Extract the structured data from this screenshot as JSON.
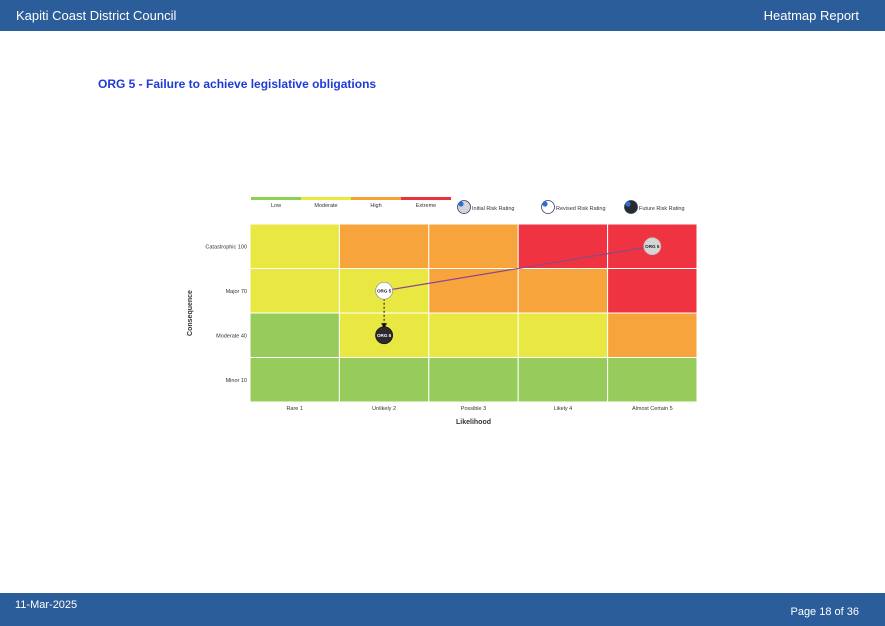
{
  "header": {
    "organisation": "Kapiti Coast District Council",
    "report_title": "Heatmap Report"
  },
  "page_title": "ORG 5 - Failure to achieve legislative obligations",
  "legend": {
    "levels": [
      {
        "label": "Low",
        "color": "#8ccf55"
      },
      {
        "label": "Moderate",
        "color": "#eaea3a"
      },
      {
        "label": "High",
        "color": "#f5a033"
      },
      {
        "label": "Extreme",
        "color": "#e8333a"
      }
    ],
    "markers": [
      {
        "label": "Initial Risk Rating",
        "fill": "#d5d5d5"
      },
      {
        "label": "Revised Risk Rating",
        "fill": "#ffffff"
      },
      {
        "label": "Future Risk Rating",
        "fill": "#2b2b2b"
      }
    ]
  },
  "chart_data": {
    "type": "heatmap",
    "xlabel": "Likelihood",
    "ylabel": "Consequence",
    "x_categories": [
      "Rare 1",
      "Unlikely 2",
      "Possible 3",
      "Likely 4",
      "Almost Certain 5"
    ],
    "y_categories": [
      "Catastrophic 100",
      "Major 70",
      "Moderate 40",
      "Minor 10"
    ],
    "colors": {
      "L": "#97cc5d",
      "M": "#e9e843",
      "H": "#f7a43c",
      "E": "#ef3340"
    },
    "matrix": [
      [
        "M",
        "H",
        "H",
        "E",
        "E"
      ],
      [
        "M",
        "M",
        "H",
        "H",
        "E"
      ],
      [
        "L",
        "M",
        "M",
        "M",
        "H"
      ],
      [
        "L",
        "L",
        "L",
        "L",
        "L"
      ]
    ],
    "points": [
      {
        "type": "initial",
        "label": "ORG 5",
        "likelihood": "Almost Certain 5",
        "consequence": "Catastrophic 100"
      },
      {
        "type": "revised",
        "label": "ORG 5",
        "likelihood": "Unlikely 2",
        "consequence": "Major 70"
      },
      {
        "type": "future",
        "label": "ORG 5",
        "likelihood": "Unlikely 2",
        "consequence": "Moderate 40"
      }
    ]
  },
  "footer": {
    "date": "11-Mar-2025",
    "page": "Page 18 of 36"
  }
}
